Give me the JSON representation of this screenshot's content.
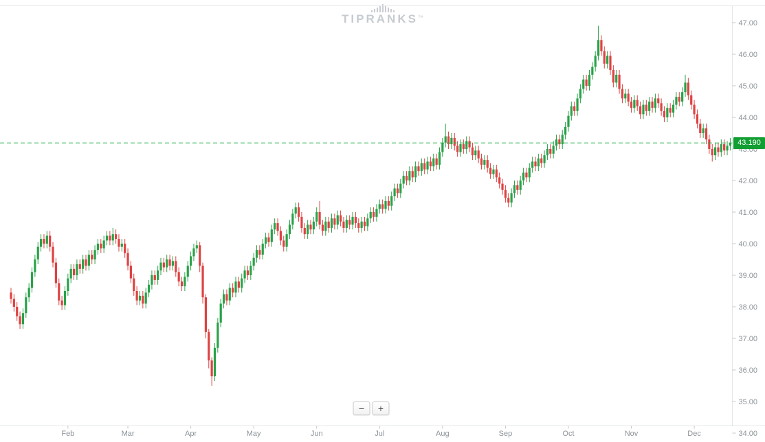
{
  "watermark": {
    "text": "TIPRANKS",
    "tm": "™"
  },
  "zoom": {
    "out_label": "−",
    "in_label": "+"
  },
  "colors": {
    "up": "#29a248",
    "down": "#de4242",
    "border": "#e3e6e8",
    "axis_text": "#8d9398"
  },
  "chart_data": {
    "type": "candlestick",
    "title": "",
    "ylim": [
      34,
      47
    ],
    "grid": "off",
    "y_ticks": [
      "47.00",
      "46.00",
      "45.00",
      "44.00",
      "43.00",
      "42.00",
      "41.00",
      "40.00",
      "39.00",
      "38.00",
      "37.00",
      "36.00",
      "35.00",
      "34.00"
    ],
    "months": [
      {
        "label": "Feb",
        "day": 19
      },
      {
        "label": "Mar",
        "day": 39
      },
      {
        "label": "Apr",
        "day": 60
      },
      {
        "label": "May",
        "day": 81
      },
      {
        "label": "Jun",
        "day": 102
      },
      {
        "label": "Jul",
        "day": 123
      },
      {
        "label": "Aug",
        "day": 144
      },
      {
        "label": "Sep",
        "day": 165
      },
      {
        "label": "Oct",
        "day": 186
      },
      {
        "label": "Nov",
        "day": 207
      },
      {
        "label": "Dec",
        "day": 228
      }
    ],
    "current_price": 43.19,
    "current_price_label": "43.190",
    "price_line_color": "#1fad41",
    "price_badge_color": "#119e32",
    "candles": [
      [
        38.45,
        38.6,
        38.1,
        38.25
      ],
      [
        38.25,
        38.4,
        37.85,
        38.0
      ],
      [
        38.0,
        38.15,
        37.55,
        37.7
      ],
      [
        37.7,
        37.85,
        37.3,
        37.45
      ],
      [
        37.45,
        37.95,
        37.3,
        37.8
      ],
      [
        37.8,
        38.45,
        37.65,
        38.3
      ],
      [
        38.3,
        38.75,
        38.15,
        38.6
      ],
      [
        38.6,
        39.25,
        38.45,
        39.1
      ],
      [
        39.1,
        39.65,
        38.95,
        39.5
      ],
      [
        39.5,
        40.05,
        39.35,
        39.9
      ],
      [
        39.9,
        40.3,
        39.75,
        40.15
      ],
      [
        40.15,
        40.3,
        39.85,
        40.0
      ],
      [
        40.0,
        40.4,
        39.85,
        40.25
      ],
      [
        40.25,
        40.4,
        39.75,
        39.9
      ],
      [
        39.9,
        40.05,
        39.25,
        39.4
      ],
      [
        39.4,
        39.55,
        38.6,
        38.75
      ],
      [
        38.75,
        38.9,
        38.05,
        38.2
      ],
      [
        38.2,
        38.35,
        37.9,
        38.05
      ],
      [
        38.05,
        38.65,
        37.9,
        38.5
      ],
      [
        38.5,
        39.05,
        38.35,
        38.9
      ],
      [
        38.9,
        39.35,
        38.75,
        39.2
      ],
      [
        39.2,
        39.35,
        38.85,
        39.0
      ],
      [
        39.0,
        39.5,
        38.85,
        39.35
      ],
      [
        39.35,
        39.5,
        39.05,
        39.2
      ],
      [
        39.2,
        39.65,
        39.05,
        39.5
      ],
      [
        39.5,
        39.65,
        39.15,
        39.3
      ],
      [
        39.3,
        39.8,
        39.15,
        39.65
      ],
      [
        39.65,
        39.8,
        39.35,
        39.5
      ],
      [
        39.5,
        39.95,
        39.35,
        39.8
      ],
      [
        39.8,
        40.15,
        39.65,
        40.0
      ],
      [
        40.0,
        40.15,
        39.7,
        39.85
      ],
      [
        39.85,
        40.25,
        39.7,
        40.1
      ],
      [
        40.1,
        40.4,
        39.95,
        40.25
      ],
      [
        40.25,
        40.4,
        39.95,
        40.1
      ],
      [
        40.1,
        40.5,
        39.95,
        40.3
      ],
      [
        40.3,
        40.45,
        40.0,
        40.15
      ],
      [
        40.15,
        40.3,
        39.75,
        39.9
      ],
      [
        39.9,
        40.15,
        39.75,
        40.0
      ],
      [
        40.0,
        40.15,
        39.55,
        39.7
      ],
      [
        39.7,
        39.85,
        39.15,
        39.3
      ],
      [
        39.3,
        39.45,
        38.75,
        38.9
      ],
      [
        38.9,
        39.05,
        38.35,
        38.5
      ],
      [
        38.5,
        38.65,
        38.05,
        38.2
      ],
      [
        38.2,
        38.5,
        38.05,
        38.35
      ],
      [
        38.35,
        38.5,
        37.95,
        38.1
      ],
      [
        38.1,
        38.6,
        37.95,
        38.45
      ],
      [
        38.45,
        38.85,
        38.3,
        38.7
      ],
      [
        38.7,
        39.15,
        38.55,
        39.0
      ],
      [
        39.0,
        39.15,
        38.7,
        38.85
      ],
      [
        38.85,
        39.3,
        38.7,
        39.15
      ],
      [
        39.15,
        39.55,
        39.0,
        39.4
      ],
      [
        39.4,
        39.55,
        39.1,
        39.25
      ],
      [
        39.25,
        39.65,
        39.1,
        39.5
      ],
      [
        39.5,
        39.65,
        39.15,
        39.3
      ],
      [
        39.3,
        39.6,
        39.15,
        39.45
      ],
      [
        39.45,
        39.6,
        38.95,
        39.1
      ],
      [
        39.1,
        39.25,
        38.65,
        38.8
      ],
      [
        38.8,
        38.95,
        38.5,
        38.65
      ],
      [
        38.65,
        39.1,
        38.5,
        38.95
      ],
      [
        38.95,
        39.45,
        38.8,
        39.3
      ],
      [
        39.3,
        39.75,
        39.15,
        39.6
      ],
      [
        39.6,
        40.0,
        39.45,
        39.85
      ],
      [
        39.85,
        40.1,
        39.7,
        39.95
      ],
      [
        39.95,
        40.05,
        39.1,
        39.3
      ],
      [
        39.3,
        39.4,
        38.1,
        38.3
      ],
      [
        38.3,
        38.4,
        37.0,
        37.2
      ],
      [
        37.2,
        37.3,
        36.05,
        36.3
      ],
      [
        36.3,
        36.4,
        35.5,
        35.8
      ],
      [
        35.8,
        36.85,
        35.65,
        36.7
      ],
      [
        36.7,
        37.65,
        36.55,
        37.5
      ],
      [
        37.5,
        38.25,
        37.35,
        38.1
      ],
      [
        38.1,
        38.55,
        37.95,
        38.4
      ],
      [
        38.4,
        38.55,
        38.05,
        38.2
      ],
      [
        38.2,
        38.75,
        38.05,
        38.6
      ],
      [
        38.6,
        38.75,
        38.3,
        38.45
      ],
      [
        38.45,
        38.95,
        38.3,
        38.8
      ],
      [
        38.8,
        38.95,
        38.45,
        38.6
      ],
      [
        38.6,
        39.05,
        38.45,
        38.9
      ],
      [
        38.9,
        39.3,
        38.75,
        39.15
      ],
      [
        39.15,
        39.3,
        38.85,
        39.0
      ],
      [
        39.0,
        39.45,
        38.85,
        39.3
      ],
      [
        39.3,
        39.7,
        39.15,
        39.55
      ],
      [
        39.55,
        39.95,
        39.4,
        39.8
      ],
      [
        39.8,
        39.95,
        39.5,
        39.65
      ],
      [
        39.65,
        40.15,
        39.5,
        40.0
      ],
      [
        40.0,
        40.35,
        39.85,
        40.2
      ],
      [
        40.2,
        40.35,
        39.9,
        40.05
      ],
      [
        40.05,
        40.6,
        39.9,
        40.45
      ],
      [
        40.45,
        40.8,
        40.3,
        40.65
      ],
      [
        40.65,
        40.8,
        40.25,
        40.4
      ],
      [
        40.4,
        40.55,
        39.95,
        40.1
      ],
      [
        40.1,
        40.25,
        39.75,
        39.9
      ],
      [
        39.9,
        40.45,
        39.75,
        40.3
      ],
      [
        40.3,
        40.75,
        40.15,
        40.6
      ],
      [
        40.6,
        41.1,
        40.45,
        40.95
      ],
      [
        40.95,
        41.3,
        40.8,
        41.15
      ],
      [
        41.15,
        41.3,
        40.7,
        40.85
      ],
      [
        40.85,
        41.0,
        40.35,
        40.5
      ],
      [
        40.5,
        40.65,
        40.15,
        40.3
      ],
      [
        40.3,
        40.75,
        40.15,
        40.6
      ],
      [
        40.6,
        40.75,
        40.3,
        40.45
      ],
      [
        40.45,
        40.85,
        40.3,
        40.7
      ],
      [
        40.7,
        41.15,
        40.55,
        41.0
      ],
      [
        41.0,
        41.35,
        40.45,
        40.6
      ],
      [
        40.6,
        40.75,
        40.25,
        40.4
      ],
      [
        40.4,
        40.85,
        40.25,
        40.7
      ],
      [
        40.7,
        40.85,
        40.35,
        40.5
      ],
      [
        40.5,
        40.95,
        40.35,
        40.8
      ],
      [
        40.8,
        40.95,
        40.45,
        40.6
      ],
      [
        40.6,
        41.05,
        40.45,
        40.9
      ],
      [
        40.9,
        41.05,
        40.55,
        40.7
      ],
      [
        40.7,
        40.85,
        40.35,
        40.5
      ],
      [
        40.5,
        40.9,
        40.35,
        40.75
      ],
      [
        40.75,
        40.9,
        40.45,
        40.6
      ],
      [
        40.6,
        41.0,
        40.45,
        40.85
      ],
      [
        40.85,
        41.0,
        40.5,
        40.65
      ],
      [
        40.65,
        40.8,
        40.35,
        40.5
      ],
      [
        40.5,
        40.85,
        40.35,
        40.7
      ],
      [
        40.7,
        40.85,
        40.4,
        40.55
      ],
      [
        40.55,
        40.95,
        40.4,
        40.8
      ],
      [
        40.8,
        41.15,
        40.65,
        41.0
      ],
      [
        41.0,
        41.15,
        40.7,
        40.85
      ],
      [
        40.85,
        41.25,
        40.7,
        41.1
      ],
      [
        41.1,
        41.4,
        40.95,
        41.25
      ],
      [
        41.25,
        41.4,
        40.95,
        41.1
      ],
      [
        41.1,
        41.5,
        40.95,
        41.35
      ],
      [
        41.35,
        41.5,
        41.05,
        41.2
      ],
      [
        41.2,
        41.65,
        41.05,
        41.5
      ],
      [
        41.5,
        41.9,
        41.35,
        41.75
      ],
      [
        41.75,
        41.9,
        41.45,
        41.6
      ],
      [
        41.6,
        42.05,
        41.45,
        41.9
      ],
      [
        41.9,
        42.3,
        41.75,
        42.15
      ],
      [
        42.15,
        42.3,
        41.85,
        42.0
      ],
      [
        42.0,
        42.45,
        41.85,
        42.3
      ],
      [
        42.3,
        42.45,
        41.95,
        42.1
      ],
      [
        42.1,
        42.6,
        41.95,
        42.45
      ],
      [
        42.45,
        42.6,
        42.15,
        42.3
      ],
      [
        42.3,
        42.7,
        42.15,
        42.55
      ],
      [
        42.55,
        42.7,
        42.2,
        42.35
      ],
      [
        42.35,
        42.75,
        42.2,
        42.6
      ],
      [
        42.6,
        42.75,
        42.3,
        42.45
      ],
      [
        42.45,
        42.85,
        42.3,
        42.7
      ],
      [
        42.7,
        42.85,
        42.35,
        42.5
      ],
      [
        42.5,
        43.05,
        42.35,
        42.9
      ],
      [
        42.9,
        43.35,
        42.75,
        43.2
      ],
      [
        43.2,
        43.8,
        43.05,
        43.4
      ],
      [
        43.4,
        43.55,
        43.0,
        43.15
      ],
      [
        43.15,
        43.5,
        43.0,
        43.35
      ],
      [
        43.35,
        43.5,
        42.95,
        43.1
      ],
      [
        43.1,
        43.25,
        42.75,
        42.9
      ],
      [
        42.9,
        43.3,
        42.75,
        43.15
      ],
      [
        43.15,
        43.3,
        42.85,
        43.0
      ],
      [
        43.0,
        43.4,
        42.85,
        43.25
      ],
      [
        43.25,
        43.4,
        42.9,
        43.05
      ],
      [
        43.05,
        43.2,
        42.65,
        42.8
      ],
      [
        42.8,
        43.1,
        42.65,
        42.95
      ],
      [
        42.95,
        43.1,
        42.55,
        42.7
      ],
      [
        42.7,
        42.85,
        42.35,
        42.5
      ],
      [
        42.5,
        42.8,
        42.35,
        42.65
      ],
      [
        42.65,
        42.8,
        42.25,
        42.4
      ],
      [
        42.4,
        42.55,
        42.05,
        42.2
      ],
      [
        42.2,
        42.5,
        42.05,
        42.35
      ],
      [
        42.35,
        42.5,
        41.95,
        42.1
      ],
      [
        42.1,
        42.25,
        41.75,
        41.9
      ],
      [
        41.9,
        42.05,
        41.55,
        41.7
      ],
      [
        41.7,
        41.85,
        41.3,
        41.45
      ],
      [
        41.45,
        41.6,
        41.15,
        41.3
      ],
      [
        41.3,
        41.75,
        41.15,
        41.6
      ],
      [
        41.6,
        42.0,
        41.45,
        41.85
      ],
      [
        41.85,
        42.0,
        41.55,
        41.7
      ],
      [
        41.7,
        42.15,
        41.55,
        42.0
      ],
      [
        42.0,
        42.4,
        41.85,
        42.25
      ],
      [
        42.25,
        42.4,
        41.95,
        42.1
      ],
      [
        42.1,
        42.55,
        41.95,
        42.4
      ],
      [
        42.4,
        42.75,
        42.25,
        42.6
      ],
      [
        42.6,
        42.75,
        42.3,
        42.45
      ],
      [
        42.45,
        42.85,
        42.3,
        42.7
      ],
      [
        42.7,
        42.85,
        42.4,
        42.55
      ],
      [
        42.55,
        42.95,
        42.4,
        42.8
      ],
      [
        42.8,
        43.15,
        42.65,
        43.0
      ],
      [
        43.0,
        43.15,
        42.7,
        42.85
      ],
      [
        42.85,
        43.25,
        42.7,
        43.1
      ],
      [
        43.1,
        43.45,
        42.95,
        43.3
      ],
      [
        43.3,
        43.45,
        43.0,
        43.15
      ],
      [
        43.15,
        43.6,
        43.0,
        43.45
      ],
      [
        43.45,
        43.85,
        43.3,
        43.7
      ],
      [
        43.7,
        44.2,
        43.55,
        44.05
      ],
      [
        44.05,
        44.5,
        43.9,
        44.35
      ],
      [
        44.35,
        44.5,
        44.05,
        44.2
      ],
      [
        44.2,
        44.75,
        44.05,
        44.6
      ],
      [
        44.6,
        45.05,
        44.45,
        44.9
      ],
      [
        44.9,
        45.35,
        44.75,
        45.2
      ],
      [
        45.2,
        45.35,
        44.85,
        45.0
      ],
      [
        45.0,
        45.5,
        44.85,
        45.35
      ],
      [
        45.35,
        45.75,
        45.2,
        45.6
      ],
      [
        45.6,
        46.1,
        45.45,
        45.95
      ],
      [
        45.95,
        46.9,
        45.8,
        46.45
      ],
      [
        46.45,
        46.6,
        45.95,
        46.1
      ],
      [
        46.1,
        46.25,
        45.55,
        45.7
      ],
      [
        45.7,
        46.1,
        45.55,
        45.95
      ],
      [
        45.95,
        46.1,
        45.35,
        45.5
      ],
      [
        45.5,
        45.65,
        44.95,
        45.1
      ],
      [
        45.1,
        45.5,
        44.95,
        45.35
      ],
      [
        45.35,
        45.5,
        44.75,
        44.9
      ],
      [
        44.9,
        45.05,
        44.45,
        44.6
      ],
      [
        44.6,
        44.9,
        44.45,
        44.75
      ],
      [
        44.75,
        44.9,
        44.35,
        44.5
      ],
      [
        44.5,
        44.65,
        44.15,
        44.3
      ],
      [
        44.3,
        44.7,
        44.15,
        44.55
      ],
      [
        44.55,
        44.7,
        44.2,
        44.35
      ],
      [
        44.35,
        44.5,
        43.95,
        44.1
      ],
      [
        44.1,
        44.55,
        43.95,
        44.4
      ],
      [
        44.4,
        44.55,
        44.05,
        44.2
      ],
      [
        44.2,
        44.65,
        44.05,
        44.5
      ],
      [
        44.5,
        44.65,
        44.15,
        44.3
      ],
      [
        44.3,
        44.75,
        44.15,
        44.6
      ],
      [
        44.6,
        44.75,
        44.3,
        44.45
      ],
      [
        44.45,
        44.6,
        44.05,
        44.2
      ],
      [
        44.2,
        44.35,
        43.85,
        44.0
      ],
      [
        44.0,
        44.45,
        43.85,
        44.3
      ],
      [
        44.3,
        44.45,
        44.0,
        44.15
      ],
      [
        44.15,
        44.55,
        44.0,
        44.4
      ],
      [
        44.4,
        44.8,
        44.25,
        44.65
      ],
      [
        44.65,
        44.8,
        44.35,
        44.5
      ],
      [
        44.5,
        44.95,
        44.35,
        44.8
      ],
      [
        44.8,
        45.35,
        44.65,
        45.1
      ],
      [
        45.1,
        45.25,
        44.55,
        44.7
      ],
      [
        44.7,
        44.85,
        44.25,
        44.4
      ],
      [
        44.4,
        44.55,
        43.95,
        44.1
      ],
      [
        44.1,
        44.25,
        43.65,
        43.8
      ],
      [
        43.8,
        43.95,
        43.35,
        43.5
      ],
      [
        43.5,
        43.8,
        43.35,
        43.65
      ],
      [
        43.65,
        43.8,
        43.15,
        43.3
      ],
      [
        43.3,
        43.45,
        42.85,
        43.0
      ],
      [
        43.0,
        43.15,
        42.6,
        42.8
      ],
      [
        42.8,
        43.2,
        42.65,
        43.05
      ],
      [
        43.05,
        43.2,
        42.75,
        42.9
      ],
      [
        42.9,
        43.3,
        42.75,
        43.15
      ],
      [
        43.15,
        43.3,
        42.8,
        42.95
      ],
      [
        42.95,
        43.25,
        42.8,
        43.1
      ],
      [
        43.1,
        43.35,
        42.95,
        43.19
      ]
    ]
  }
}
